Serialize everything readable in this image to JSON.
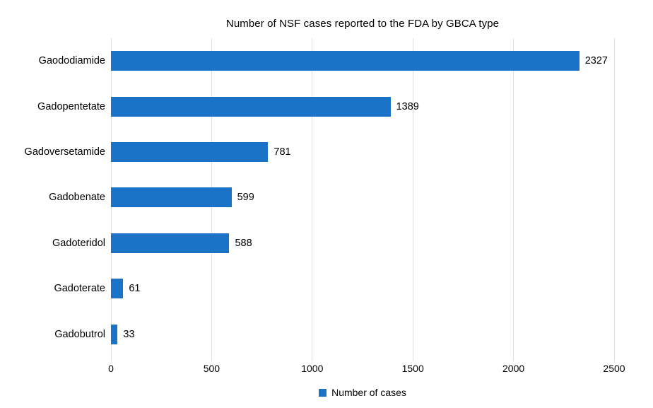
{
  "chart_data": {
    "type": "bar",
    "orientation": "horizontal",
    "title": "Number of NSF cases reported to the FDA by GBCA type",
    "categories": [
      "Gaododiamide",
      "Gadopentetate",
      "Gadoversetamide",
      "Gadobenate",
      "Gadoteridol",
      "Gadoterate",
      "Gadobutrol"
    ],
    "values": [
      2327,
      1389,
      781,
      599,
      588,
      61,
      33
    ],
    "xlabel": "",
    "ylabel": "",
    "xlim": [
      0,
      2500
    ],
    "x_ticks": [
      "0",
      "500",
      "1000",
      "1500",
      "2000",
      "2500"
    ],
    "x_tick_values": [
      0,
      500,
      1000,
      1500,
      2000,
      2500
    ],
    "grid": "vertical",
    "legend_position": "bottom",
    "legend": [
      {
        "label": "Number of cases",
        "color": "#1b73c8"
      }
    ],
    "colors": {
      "bar": "#1b73c8",
      "gridline": "#e0e0e0",
      "text": "#000000",
      "background": "#ffffff"
    }
  }
}
